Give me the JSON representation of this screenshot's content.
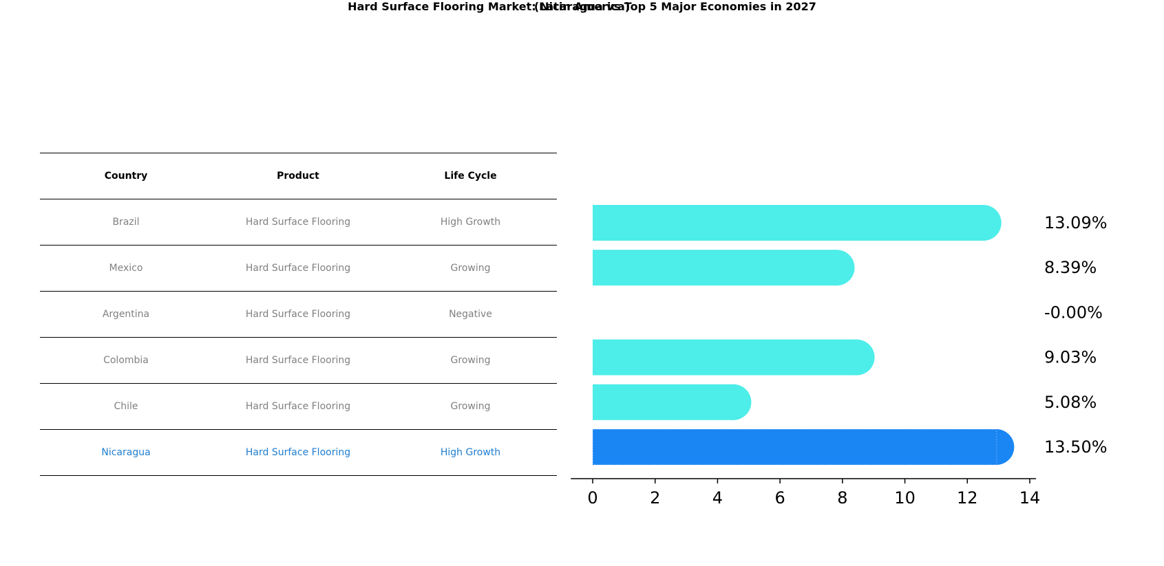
{
  "title": "Hard Surface Flooring Market: Nicaragua vs Top 5 Major Economies in 2027",
  "subtitle": "(Latin America)",
  "table": {
    "headers": [
      "Country",
      "Product",
      "Life Cycle"
    ],
    "rows": [
      {
        "country": "Brazil",
        "product": "Hard Surface Flooring",
        "life_cycle": "High Growth"
      },
      {
        "country": "Mexico",
        "product": "Hard Surface Flooring",
        "life_cycle": "Growing"
      },
      {
        "country": "Argentina",
        "product": "Hard Surface Flooring",
        "life_cycle": "Negative"
      },
      {
        "country": "Colombia",
        "product": "Hard Surface Flooring",
        "life_cycle": "Growing"
      },
      {
        "country": "Chile",
        "product": "Hard Surface Flooring",
        "life_cycle": "Growing"
      },
      {
        "country": "Nicaragua",
        "product": "Hard Surface Flooring",
        "life_cycle": "High Growth"
      }
    ]
  },
  "chart_data": {
    "type": "bar",
    "orientation": "horizontal",
    "categories": [
      "Brazil",
      "Mexico",
      "Argentina",
      "Colombia",
      "Chile",
      "Nicaragua"
    ],
    "values": [
      13.09,
      8.39,
      -0.0,
      9.03,
      5.08,
      13.5
    ],
    "value_labels": [
      "13.09%",
      "8.39%",
      "-0.00%",
      "9.03%",
      "5.08%",
      "13.50%"
    ],
    "xlim": [
      -0.7,
      14.2
    ],
    "xticks": [
      0,
      2,
      4,
      6,
      8,
      10,
      12,
      14
    ],
    "xticklabels": [
      "0",
      "2",
      "4",
      "6",
      "8",
      "10",
      "12",
      "14"
    ],
    "highlight_index": 5,
    "colors": {
      "default": "#4dede9",
      "highlight": "#1a86f4",
      "highlight_text": "#1f7ecf",
      "muted_text": "#808080"
    },
    "grid": false
  }
}
